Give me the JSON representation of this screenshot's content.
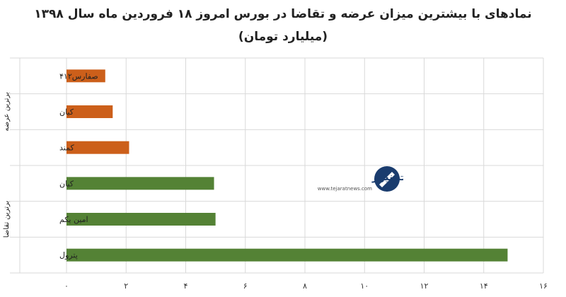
{
  "chart_data": {
    "type": "bar",
    "orientation": "horizontal",
    "title": "نمادهای با بیشترین میزان عرضه و تقاضا در بورس امروز ۱۸ فروردین ماه سال ۱۳۹۸",
    "subtitle": "(میلیارد تومان)",
    "groups": [
      {
        "label": "برترین عرضه",
        "color": "#cc5f1a",
        "categories": [
          "صفارس۴۱۲",
          "کیان",
          "کمند"
        ],
        "values": [
          1.3,
          1.55,
          2.1
        ]
      },
      {
        "label": "برترین تقاضا",
        "color": "#548235",
        "categories": [
          "کیان",
          "امین یکم",
          "پترول"
        ],
        "values": [
          4.95,
          5.0,
          14.8
        ]
      }
    ],
    "xlim": [
      0,
      16
    ],
    "xticks": [
      "۰",
      "۲",
      "۴",
      "۶",
      "۸",
      "۱۰",
      "۱۲",
      "۱۴",
      "۱۶"
    ],
    "grid": true
  },
  "watermark": {
    "text": "تجارت نیوز",
    "url": "www.tejaratnews.com",
    "colors": {
      "primary": "#1a3c6e",
      "accent": "#d9232a"
    }
  }
}
